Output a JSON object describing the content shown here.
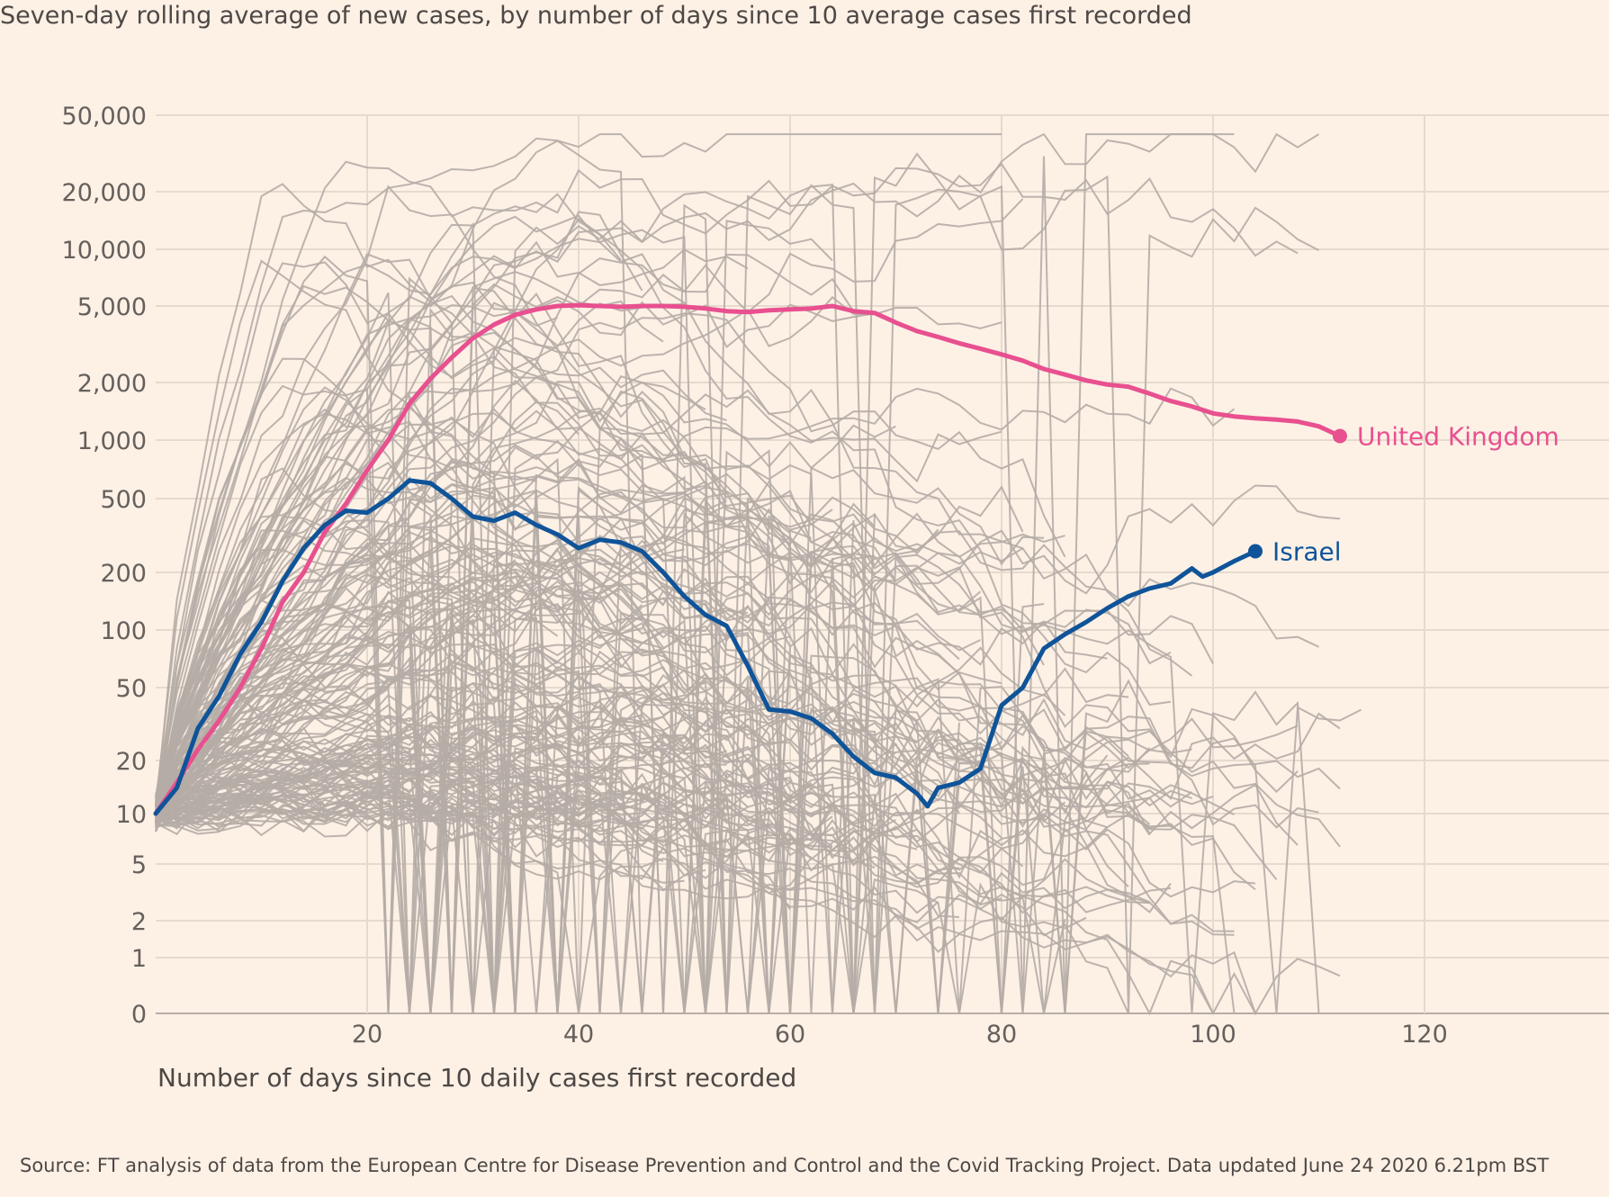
{
  "subtitle": "Seven-day rolling average of new cases, by number of days since 10 average cases first recorded",
  "source": "Source: FT analysis of data from the European Centre for Disease Prevention and Control and the Covid Tracking Project. Data updated June 24 2020 6.21pm BST",
  "colors": {
    "background": "#fdf1e6",
    "grid": "#e6d9ce",
    "background_lines": "#b5aca6",
    "united_kingdom": "#e8508f",
    "israel": "#0f5499"
  },
  "chart_data": {
    "type": "line",
    "title": "",
    "subtitle": "Seven-day rolling average of new cases, by number of days since 10 average cases first recorded",
    "xlabel": "Number of days since 10 daily cases first recorded",
    "ylabel": "",
    "y_scale": "log",
    "xlim": [
      0,
      137
    ],
    "x_ticks": [
      20,
      40,
      60,
      80,
      100,
      120
    ],
    "y_ticks": [
      0,
      1,
      2,
      5,
      10,
      20,
      50,
      100,
      200,
      500,
      1000,
      2000,
      5000,
      10000,
      20000,
      50000
    ],
    "y_tick_labels": [
      "0",
      "1",
      "2",
      "5",
      "10",
      "20",
      "50",
      "100",
      "200",
      "500",
      "1,000",
      "2,000",
      "5,000",
      "10,000",
      "20,000",
      "50,000"
    ],
    "grid": true,
    "series": [
      {
        "name": "United Kingdom",
        "highlight": true,
        "color": "#e8508f",
        "x": [
          0,
          2,
          4,
          6,
          8,
          10,
          12,
          14,
          16,
          18,
          20,
          22,
          24,
          26,
          28,
          30,
          32,
          34,
          36,
          38,
          40,
          42,
          44,
          46,
          48,
          50,
          52,
          54,
          56,
          58,
          60,
          62,
          64,
          66,
          68,
          70,
          72,
          74,
          76,
          78,
          80,
          82,
          84,
          86,
          88,
          90,
          92,
          94,
          96,
          98,
          100,
          102,
          104,
          106,
          108,
          110,
          112
        ],
        "y": [
          10,
          15,
          23,
          33,
          50,
          80,
          140,
          200,
          330,
          470,
          700,
          1000,
          1550,
          2100,
          2700,
          3400,
          4000,
          4500,
          4800,
          5000,
          5050,
          5000,
          4950,
          5000,
          5000,
          4950,
          4850,
          4700,
          4650,
          4750,
          4800,
          4850,
          5000,
          4700,
          4600,
          4100,
          3700,
          3450,
          3200,
          3000,
          2800,
          2600,
          2350,
          2200,
          2050,
          1950,
          1900,
          1750,
          1600,
          1500,
          1380,
          1330,
          1300,
          1280,
          1250,
          1180,
          1050
        ]
      },
      {
        "name": "Israel",
        "highlight": true,
        "color": "#0f5499",
        "x": [
          0,
          2,
          4,
          6,
          8,
          10,
          12,
          14,
          16,
          18,
          20,
          22,
          24,
          26,
          28,
          30,
          32,
          34,
          36,
          38,
          40,
          42,
          44,
          46,
          48,
          50,
          52,
          54,
          56,
          58,
          60,
          62,
          64,
          66,
          68,
          70,
          72,
          73,
          74,
          76,
          78,
          80,
          82,
          84,
          86,
          88,
          90,
          92,
          94,
          96,
          98,
          99,
          100,
          102,
          104
        ],
        "y": [
          10,
          14,
          30,
          45,
          75,
          110,
          180,
          270,
          360,
          430,
          420,
          500,
          620,
          600,
          500,
          400,
          380,
          420,
          360,
          320,
          270,
          300,
          290,
          260,
          200,
          150,
          120,
          105,
          65,
          38,
          37,
          34,
          28,
          21,
          17,
          16,
          13,
          11,
          14,
          15,
          18,
          40,
          50,
          80,
          95,
          110,
          130,
          150,
          165,
          175,
          210,
          190,
          200,
          230,
          260
        ]
      }
    ],
    "annotations": [
      "United Kingdom",
      "Israel"
    ]
  }
}
